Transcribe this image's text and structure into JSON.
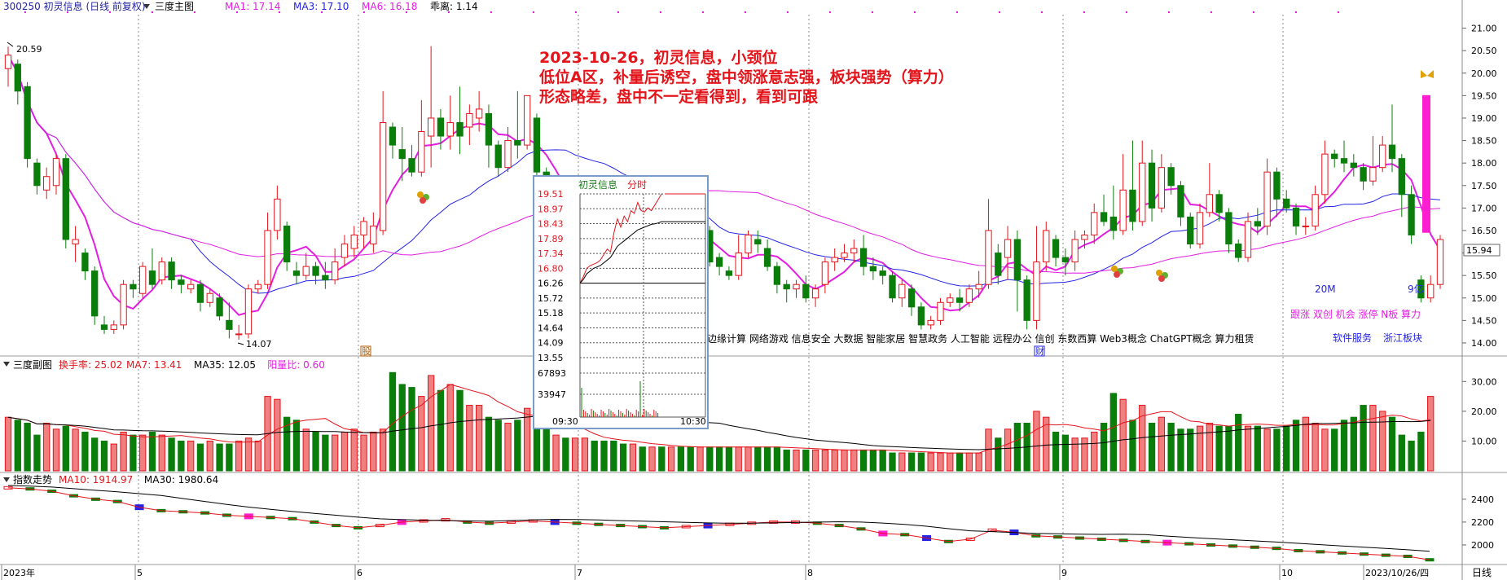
{
  "header": {
    "stock": "300250 初灵信息 (日线 前复权)",
    "main_icon": "三度主图",
    "ma_labels": [
      {
        "text": "MA1: 17.14",
        "color": "#e21ee2"
      },
      {
        "text": "MA3: 17.10",
        "color": "#2323e6"
      },
      {
        "text": "MA6: 16.18",
        "color": "#e21ee2"
      },
      {
        "text": "乖离: 1.14",
        "color": "#000000"
      }
    ]
  },
  "annotation": {
    "lines": [
      "2023-10-26，初灵信息，小颈位",
      "低位A区，补量后诱空，盘中领涨意志强，板块强势（算力）",
      "形态略差，盘中不一定看得到，看到可跟"
    ]
  },
  "price_marks": {
    "high": "20.59",
    "low": "14.07"
  },
  "price_axis": [
    "21.00",
    "20.50",
    "20.00",
    "19.50",
    "19.00",
    "18.50",
    "18.00",
    "17.50",
    "17.00",
    "16.50",
    "16.00",
    "15.50",
    "15.00",
    "14.50",
    "14.00"
  ],
  "current_price": "15.94",
  "concepts": "边缘计算 网络游戏 信息安全 大数据 智能家居 智慧政务 人工智能 远程办公 信创 东数西算 Web3概念 ChatGPT概念 算力租赁",
  "right_labels": {
    "m20": "20M",
    "yi": "9亿",
    "tags": "跟涨 双创 机会 涨停 N板 算力",
    "bottom_tags": [
      "软件服务",
      "浙江板块"
    ]
  },
  "markers": {
    "kai": "股",
    "cai": "财"
  },
  "sub_chart": {
    "title": "三度副图",
    "labels": [
      {
        "text": "换手率: 25.02",
        "color": "#e4141b"
      },
      {
        "text": "MA7: 13.41",
        "color": "#e4141b"
      },
      {
        "text": "MA35: 12.05",
        "color": "#000000"
      },
      {
        "text": "阳量比: 0.60",
        "color": "#e21ee2"
      }
    ],
    "axis": [
      "30.00",
      "20.00",
      "10.00"
    ]
  },
  "index_chart": {
    "title": "指数走势",
    "labels": [
      {
        "text": "MA10: 1914.97",
        "color": "#e4141b"
      },
      {
        "text": "MA30: 1980.64",
        "color": "#000000"
      }
    ],
    "axis": [
      "2400",
      "2200",
      "2000"
    ]
  },
  "date_axis": [
    "2023年",
    "5",
    "6",
    "7",
    "8",
    "9",
    "10",
    "2023/10/26/四"
  ],
  "period": "日线",
  "intraday_popup": {
    "title": "初灵信息",
    "subtitle": "分时",
    "price_ticks": [
      "19.51",
      "18.97",
      "18.43",
      "17.89",
      "17.34",
      "16.80",
      "16.26",
      "15.72",
      "15.18",
      "14.64",
      "14.09",
      "13.55"
    ],
    "volume_ticks": [
      "67893",
      "33947"
    ],
    "time_start": "09:30",
    "time_end": "10:30"
  },
  "chart_data": {
    "type": "candlestick",
    "price_range": [
      13.8,
      21.3
    ],
    "candles": [
      [
        20.1,
        20.4,
        19.7,
        20.59
      ],
      [
        20.2,
        19.6,
        19.3,
        20.3
      ],
      [
        19.7,
        18.1,
        17.9,
        19.8
      ],
      [
        18.0,
        17.5,
        17.3,
        18.1
      ],
      [
        17.4,
        17.7,
        17.2,
        17.9
      ],
      [
        17.5,
        18.1,
        17.3,
        18.2
      ],
      [
        18.1,
        16.3,
        16.1,
        18.2
      ],
      [
        16.2,
        16.3,
        15.8,
        16.6
      ],
      [
        16.0,
        15.6,
        15.4,
        16.1
      ],
      [
        15.6,
        14.6,
        14.4,
        15.7
      ],
      [
        14.4,
        14.3,
        14.2,
        14.6
      ],
      [
        14.3,
        14.4,
        14.2,
        14.5
      ],
      [
        14.4,
        15.3,
        14.3,
        15.4
      ],
      [
        15.3,
        15.2,
        15.0,
        15.4
      ],
      [
        15.1,
        15.7,
        15.0,
        15.8
      ],
      [
        15.6,
        15.3,
        15.2,
        16.1
      ],
      [
        15.4,
        15.8,
        15.3,
        15.9
      ],
      [
        15.8,
        15.4,
        15.2,
        15.9
      ],
      [
        15.4,
        15.3,
        15.1,
        15.5
      ],
      [
        15.2,
        15.3,
        15.1,
        15.4
      ],
      [
        15.3,
        14.9,
        14.7,
        15.4
      ],
      [
        14.9,
        15.1,
        14.8,
        15.2
      ],
      [
        15.0,
        14.6,
        14.5,
        15.1
      ],
      [
        14.5,
        14.3,
        14.1,
        14.9
      ],
      [
        14.2,
        14.2,
        14.07,
        14.4
      ],
      [
        14.2,
        15.2,
        14.1,
        15.3
      ],
      [
        15.2,
        15.3,
        15.1,
        15.4
      ],
      [
        15.3,
        16.5,
        15.2,
        16.9
      ],
      [
        16.5,
        17.2,
        16.3,
        17.5
      ],
      [
        16.6,
        15.8,
        15.6,
        16.7
      ],
      [
        15.6,
        15.5,
        15.3,
        15.8
      ],
      [
        15.5,
        15.7,
        15.4,
        16.0
      ],
      [
        15.7,
        15.5,
        15.3,
        15.8
      ],
      [
        15.5,
        15.4,
        15.2,
        15.8
      ],
      [
        15.4,
        15.8,
        15.3,
        16.1
      ],
      [
        15.9,
        16.2,
        15.7,
        16.4
      ],
      [
        16.1,
        16.4,
        15.9,
        16.6
      ],
      [
        16.4,
        16.7,
        16.1,
        16.8
      ],
      [
        16.2,
        16.6,
        16.0,
        16.9
      ],
      [
        16.5,
        18.9,
        16.4,
        19.6
      ],
      [
        18.8,
        18.4,
        18.1,
        18.9
      ],
      [
        18.3,
        18.1,
        17.6,
        18.8
      ],
      [
        18.1,
        17.8,
        17.7,
        18.4
      ],
      [
        17.8,
        18.7,
        17.7,
        19.4
      ],
      [
        18.6,
        19.0,
        17.9,
        20.6
      ],
      [
        19.0,
        18.6,
        18.3,
        19.2
      ],
      [
        18.6,
        18.9,
        18.3,
        19.5
      ],
      [
        18.9,
        18.6,
        18.2,
        19.7
      ],
      [
        18.8,
        19.1,
        18.4,
        19.3
      ],
      [
        19.0,
        19.2,
        18.7,
        19.6
      ],
      [
        19.1,
        18.4,
        17.9,
        19.3
      ],
      [
        18.4,
        17.9,
        17.7,
        18.5
      ],
      [
        17.9,
        18.5,
        17.8,
        18.8
      ],
      [
        18.5,
        18.4,
        18.1,
        19.6
      ],
      [
        18.4,
        19.5,
        18.3,
        19.5
      ],
      [
        19.0,
        17.8,
        17.5,
        19.1
      ],
      [
        17.8,
        16.7,
        16.5,
        17.9
      ],
      [
        16.6,
        16.8,
        16.2,
        17.1
      ],
      [
        16.8,
        16.5,
        16.2,
        17.0
      ],
      [
        16.6,
        16.7,
        16.4,
        17.1
      ],
      [
        16.7,
        17.0,
        16.5,
        17.2
      ],
      [
        17.0,
        16.8,
        16.6,
        17.1
      ],
      [
        16.8,
        16.7,
        16.5,
        17.1
      ],
      [
        16.7,
        16.6,
        16.5,
        16.9
      ],
      [
        16.6,
        16.5,
        16.4,
        16.8
      ],
      [
        16.5,
        16.6,
        16.4,
        16.8
      ],
      [
        16.6,
        16.5,
        16.4,
        16.7
      ],
      [
        16.5,
        16.6,
        16.4,
        16.8
      ],
      [
        16.6,
        16.5,
        16.4,
        16.7
      ],
      [
        16.5,
        16.6,
        16.4,
        16.8
      ],
      [
        16.6,
        16.4,
        16.3,
        16.7
      ],
      [
        16.5,
        16.2,
        16.0,
        16.6
      ],
      [
        16.2,
        16.5,
        16.1,
        16.6
      ],
      [
        16.5,
        15.8,
        15.7,
        16.6
      ],
      [
        15.9,
        15.7,
        15.5,
        16.0
      ],
      [
        15.6,
        15.5,
        15.4,
        15.7
      ],
      [
        15.5,
        16.0,
        15.4,
        16.4
      ],
      [
        16.0,
        16.4,
        15.9,
        16.5
      ],
      [
        16.3,
        16.2,
        16.0,
        16.5
      ],
      [
        16.1,
        15.7,
        15.6,
        16.3
      ],
      [
        15.7,
        15.3,
        15.1,
        15.8
      ],
      [
        15.3,
        15.2,
        14.9,
        15.4
      ],
      [
        15.2,
        15.3,
        15.0,
        15.4
      ],
      [
        15.3,
        15.0,
        14.9,
        15.5
      ],
      [
        15.0,
        15.2,
        14.8,
        15.3
      ],
      [
        15.3,
        15.8,
        15.1,
        15.9
      ],
      [
        15.8,
        15.9,
        15.6,
        16.1
      ],
      [
        15.9,
        16.0,
        15.8,
        16.2
      ],
      [
        16.0,
        16.1,
        15.8,
        16.3
      ],
      [
        16.1,
        15.7,
        15.5,
        16.4
      ],
      [
        15.7,
        15.6,
        15.4,
        15.9
      ],
      [
        15.6,
        15.5,
        15.3,
        15.7
      ],
      [
        15.5,
        15.0,
        14.9,
        15.6
      ],
      [
        15.0,
        15.3,
        14.8,
        15.4
      ],
      [
        15.2,
        14.8,
        14.6,
        15.3
      ],
      [
        14.8,
        14.4,
        14.3,
        14.9
      ],
      [
        14.4,
        14.5,
        14.3,
        14.6
      ],
      [
        14.5,
        14.9,
        14.4,
        15.0
      ],
      [
        14.9,
        15.0,
        14.8,
        15.1
      ],
      [
        15.0,
        14.9,
        14.7,
        15.2
      ],
      [
        14.9,
        15.2,
        14.8,
        15.3
      ],
      [
        15.2,
        15.3,
        15.0,
        15.6
      ],
      [
        15.3,
        16.5,
        15.2,
        17.2
      ],
      [
        16.0,
        15.5,
        15.3,
        16.2
      ],
      [
        15.9,
        16.3,
        15.4,
        16.6
      ],
      [
        16.3,
        15.4,
        14.7,
        16.5
      ],
      [
        15.4,
        14.5,
        14.3,
        15.5
      ],
      [
        14.5,
        15.8,
        14.3,
        16.6
      ],
      [
        15.8,
        16.5,
        15.6,
        16.7
      ],
      [
        16.3,
        15.9,
        15.7,
        16.4
      ],
      [
        15.9,
        15.8,
        15.5,
        16.1
      ],
      [
        15.8,
        16.3,
        15.6,
        16.5
      ],
      [
        16.3,
        16.4,
        16.1,
        16.5
      ],
      [
        16.4,
        16.9,
        16.2,
        17.1
      ],
      [
        16.9,
        16.7,
        16.6,
        17.3
      ],
      [
        16.8,
        16.5,
        16.3,
        17.5
      ],
      [
        16.5,
        17.4,
        16.4,
        18.2
      ],
      [
        17.4,
        16.7,
        16.5,
        18.5
      ],
      [
        16.7,
        18.0,
        16.6,
        18.5
      ],
      [
        18.0,
        17.0,
        16.7,
        18.3
      ],
      [
        17.0,
        17.9,
        16.9,
        18.2
      ],
      [
        17.9,
        17.5,
        17.3,
        18.0
      ],
      [
        17.5,
        16.8,
        16.6,
        17.6
      ],
      [
        16.8,
        16.2,
        16.1,
        16.9
      ],
      [
        16.2,
        16.9,
        16.1,
        17.1
      ],
      [
        16.9,
        17.3,
        16.8,
        18.0
      ],
      [
        17.3,
        16.9,
        16.7,
        17.4
      ],
      [
        16.9,
        16.2,
        16.0,
        17.0
      ],
      [
        16.2,
        15.9,
        15.8,
        16.3
      ],
      [
        15.9,
        16.7,
        15.8,
        16.9
      ],
      [
        16.7,
        16.6,
        16.4,
        17.0
      ],
      [
        16.6,
        17.8,
        16.4,
        18.1
      ],
      [
        17.8,
        17.2,
        16.8,
        17.9
      ],
      [
        17.2,
        17.0,
        16.9,
        17.4
      ],
      [
        17.0,
        16.6,
        16.4,
        17.1
      ],
      [
        16.6,
        16.6,
        16.4,
        16.8
      ],
      [
        16.6,
        17.3,
        16.5,
        17.5
      ],
      [
        17.3,
        18.2,
        17.1,
        18.5
      ],
      [
        18.2,
        18.1,
        17.9,
        18.3
      ],
      [
        18.1,
        18.0,
        17.8,
        18.5
      ],
      [
        18.0,
        17.9,
        17.7,
        18.2
      ],
      [
        17.9,
        17.6,
        17.4,
        18.0
      ],
      [
        17.6,
        17.9,
        17.5,
        18.6
      ],
      [
        17.9,
        18.4,
        17.8,
        18.6
      ],
      [
        18.4,
        18.1,
        17.8,
        19.3
      ],
      [
        18.1,
        17.3,
        16.8,
        18.2
      ],
      [
        17.3,
        16.4,
        16.2,
        17.5
      ],
      [
        15.4,
        15.0,
        14.9,
        15.5
      ],
      [
        15.0,
        15.3,
        14.9,
        15.5
      ],
      [
        15.3,
        16.3,
        15.2,
        16.4
      ]
    ],
    "volume": [
      18,
      17,
      16,
      12,
      16,
      14,
      15,
      14,
      13,
      11,
      10,
      9,
      13,
      12,
      12,
      13,
      12,
      11,
      10,
      10,
      9,
      10,
      9,
      9,
      10,
      11,
      10,
      25,
      24,
      18,
      17,
      14,
      13,
      12,
      12,
      13,
      14,
      12,
      13,
      14,
      33,
      29,
      28,
      25,
      32,
      27,
      29,
      27,
      22,
      22,
      18,
      17,
      16,
      17,
      21,
      18,
      14,
      12,
      11,
      11,
      11,
      10,
      10,
      10,
      9,
      9,
      8,
      8,
      8,
      8,
      8,
      8,
      8,
      8,
      8,
      8,
      8,
      8,
      8,
      8,
      8,
      7,
      7,
      7,
      7,
      7,
      7,
      7,
      7,
      7,
      7,
      7,
      6,
      6,
      6,
      6,
      6,
      6,
      6,
      6,
      6,
      6,
      14,
      11,
      14,
      16,
      16,
      20,
      18,
      13,
      12,
      11,
      11,
      13,
      16,
      26,
      24,
      17,
      22,
      16,
      18,
      16,
      14,
      14,
      15,
      16,
      15,
      15,
      19,
      15,
      15,
      14,
      14,
      15,
      17,
      18,
      16,
      14,
      14,
      17,
      18,
      22,
      22,
      20,
      18,
      12,
      10,
      13,
      25
    ],
    "index_values": [
      2500,
      2490,
      2470,
      2430,
      2400,
      2380,
      2330,
      2300,
      2290,
      2280,
      2260,
      2250,
      2240,
      2230,
      2200,
      2170,
      2150,
      2170,
      2200,
      2210,
      2220,
      2200,
      2190,
      2200,
      2210,
      2200,
      2190,
      2180,
      2170,
      2160,
      2150,
      2160,
      2170,
      2180,
      2190,
      2200,
      2200,
      2190,
      2170,
      2140,
      2100,
      2090,
      2060,
      2030,
      2050,
      2130,
      2110,
      2080,
      2070,
      2060,
      2050,
      2040,
      2030,
      2020,
      2010,
      2000,
      1990,
      1980,
      1970,
      1950,
      1940,
      1930,
      1920,
      1910,
      1900,
      1870
    ]
  }
}
